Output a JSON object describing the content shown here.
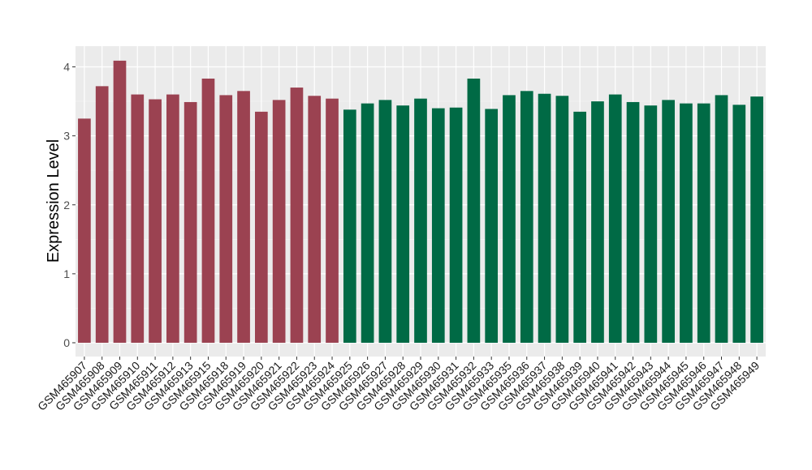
{
  "chart_data": {
    "type": "bar",
    "title": "",
    "xlabel": "",
    "ylabel": "Expression Level",
    "ylim": [
      -0.2,
      4.3
    ],
    "yticks": [
      0,
      1,
      2,
      3,
      4
    ],
    "grid": true,
    "legend": "none",
    "colors": {
      "panel_bg": "#ebebeb",
      "grid_major": "#ffffff",
      "grid_minor": "#f5f5f5",
      "group_a": "#9b4251",
      "group_b": "#006a45"
    },
    "categories": [
      "GSM465907",
      "GSM465908",
      "GSM465909",
      "GSM465910",
      "GSM465911",
      "GSM465912",
      "GSM465913",
      "GSM465915",
      "GSM465918",
      "GSM465919",
      "GSM465920",
      "GSM465921",
      "GSM465922",
      "GSM465923",
      "GSM465924",
      "GSM465925",
      "GSM465926",
      "GSM465927",
      "GSM465928",
      "GSM465929",
      "GSM465930",
      "GSM465931",
      "GSM465932",
      "GSM465933",
      "GSM465935",
      "GSM465936",
      "GSM465937",
      "GSM465938",
      "GSM465939",
      "GSM465940",
      "GSM465941",
      "GSM465942",
      "GSM465943",
      "GSM465944",
      "GSM465945",
      "GSM465946",
      "GSM465947",
      "GSM465948",
      "GSM465949"
    ],
    "values": [
      3.25,
      3.72,
      4.09,
      3.6,
      3.53,
      3.6,
      3.49,
      3.83,
      3.59,
      3.65,
      3.35,
      3.52,
      3.7,
      3.58,
      3.54,
      3.38,
      3.47,
      3.52,
      3.44,
      3.54,
      3.4,
      3.41,
      3.83,
      3.39,
      3.59,
      3.65,
      3.61,
      3.58,
      3.35,
      3.5,
      3.6,
      3.49,
      3.44,
      3.52,
      3.47,
      3.47,
      3.59,
      3.45,
      3.57
    ],
    "groups": [
      "a",
      "a",
      "a",
      "a",
      "a",
      "a",
      "a",
      "a",
      "a",
      "a",
      "a",
      "a",
      "a",
      "a",
      "a",
      "b",
      "b",
      "b",
      "b",
      "b",
      "b",
      "b",
      "b",
      "b",
      "b",
      "b",
      "b",
      "b",
      "b",
      "b",
      "b",
      "b",
      "b",
      "b",
      "b",
      "b",
      "b",
      "b",
      "b"
    ]
  }
}
